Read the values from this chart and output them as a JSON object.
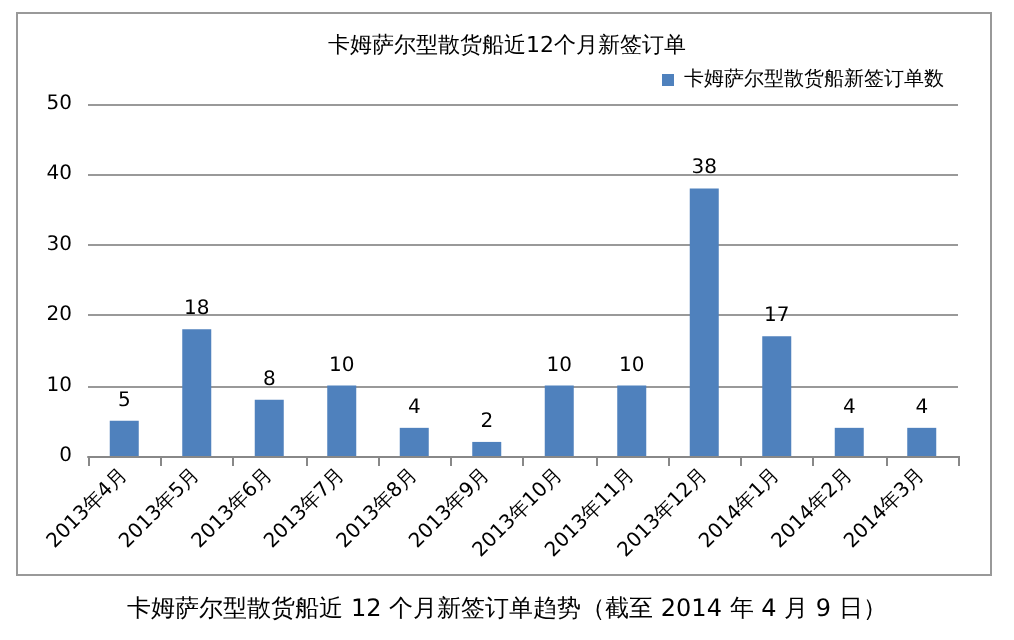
{
  "chart_data": {
    "type": "bar",
    "title": "卡姆萨尔型散货船近12个月新签订单",
    "categories": [
      "2013年4月",
      "2013年5月",
      "2013年6月",
      "2013年7月",
      "2013年8月",
      "2013年9月",
      "2013年10月",
      "2013年11月",
      "2013年12月",
      "2014年1月",
      "2014年2月",
      "2014年3月"
    ],
    "series": [
      {
        "name": "卡姆萨尔型散货船新签订单数",
        "color": "#4f81bd",
        "values": [
          5,
          18,
          8,
          10,
          4,
          2,
          10,
          10,
          38,
          17,
          4,
          4
        ]
      }
    ],
    "ylim": [
      0,
      50
    ],
    "yticks": [
      0,
      10,
      20,
      30,
      40,
      50
    ],
    "grid": "y",
    "legend": "top right",
    "data_labels": true,
    "annotations": [
      "卡姆萨尔型散货船近 12 个月新签订单趋势（截至 2014 年 4 月 9 日）"
    ]
  }
}
